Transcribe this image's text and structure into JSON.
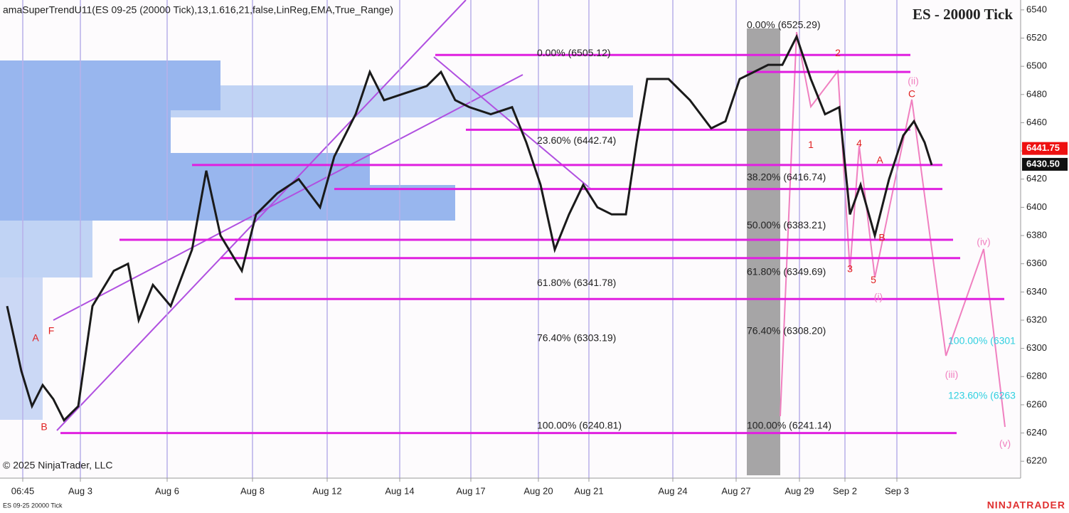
{
  "chart_data": {
    "type": "line",
    "indicator": "amaSuperTrendU11(ES 09-25 (20000 Tick),13,1.616,21,false,LinReg,EMA,True_Range)",
    "title": "ES - 20000 Tick",
    "copyright": "© 2025 NinjaTrader, LLC",
    "instrument": "ES 09-25 20000 Tick",
    "brand": "NINJATRADER",
    "color": "#1a1a1a",
    "x": [
      10,
      30,
      45,
      60,
      75,
      90,
      110,
      130,
      160,
      180,
      195,
      215,
      240,
      270,
      290,
      310,
      340,
      360,
      390,
      420,
      450,
      470,
      500,
      520,
      540,
      570,
      600,
      620,
      640,
      660,
      690,
      720,
      740,
      760,
      780,
      800,
      820,
      840,
      860,
      880,
      895,
      910,
      940,
      970,
      1000,
      1020,
      1040,
      1060,
      1080,
      1100,
      1120,
      1140,
      1160,
      1180,
      1195,
      1210,
      1230,
      1250,
      1270,
      1285,
      1300,
      1310
    ],
    "values": [
      6330,
      6284,
      6259,
      6274,
      6264,
      6249,
      6259,
      6330,
      6355,
      6360,
      6320,
      6345,
      6330,
      6370,
      6426,
      6380,
      6355,
      6395,
      6410,
      6420,
      6400,
      6436,
      6466,
      6496,
      6476,
      6481,
      6486,
      6496,
      6476,
      6471,
      6466,
      6471,
      6446,
      6416,
      6370,
      6395,
      6416,
      6400,
      6395,
      6395,
      6446,
      6491,
      6491,
      6476,
      6456,
      6461,
      6491,
      6496,
      6501,
      6501,
      6521,
      6491,
      6466,
      6471,
      6395,
      6416,
      6380,
      6420,
      6451,
      6461,
      6446,
      6430
    ],
    "xlim": [
      0,
      1435
    ],
    "ylim": [
      6208,
      6547
    ],
    "yticks": [
      6220,
      6240,
      6260,
      6280,
      6300,
      6320,
      6340,
      6360,
      6380,
      6400,
      6420,
      6440,
      6460,
      6480,
      6500,
      6520,
      6540
    ],
    "xticks": [
      {
        "value": 32,
        "label": "06:45"
      },
      {
        "value": 113,
        "label": "Aug 3"
      },
      {
        "value": 235,
        "label": "Aug 6"
      },
      {
        "value": 355,
        "label": "Aug 8"
      },
      {
        "value": 460,
        "label": "Aug 12"
      },
      {
        "value": 562,
        "label": "Aug 14"
      },
      {
        "value": 662,
        "label": "Aug 17"
      },
      {
        "value": 757,
        "label": "Aug 20"
      },
      {
        "value": 828,
        "label": "Aug 21"
      },
      {
        "value": 946,
        "label": "Aug 24"
      },
      {
        "value": 1035,
        "label": "Aug 27"
      },
      {
        "value": 1124,
        "label": "Aug 29"
      },
      {
        "value": 1188,
        "label": "Sep 2"
      },
      {
        "value": 1261,
        "label": "Sep 3"
      }
    ],
    "levels": [
      {
        "value": 6508,
        "from": 612,
        "to": 1280
      },
      {
        "value": 6496,
        "from": 1050,
        "to": 1280
      },
      {
        "value": 6455,
        "from": 655,
        "to": 1280
      },
      {
        "value": 6430,
        "from": 270,
        "to": 1325
      },
      {
        "value": 6413,
        "from": 470,
        "to": 1325
      },
      {
        "value": 6377,
        "from": 168,
        "to": 1340
      },
      {
        "value": 6364,
        "from": 310,
        "to": 1350
      },
      {
        "value": 6335,
        "from": 330,
        "to": 1412
      },
      {
        "value": 6240,
        "from": 85,
        "to": 1345
      }
    ],
    "level_color": "#e020e0",
    "fib_labels": [
      {
        "text": "0.00% (6505.12)",
        "x": 755,
        "y": 6509,
        "color": "#222222"
      },
      {
        "text": "23.60% (6442.74)",
        "x": 755,
        "y": 6447,
        "color": "#222222"
      },
      {
        "text": "61.80% (6341.78)",
        "x": 755,
        "y": 6346,
        "color": "#222222"
      },
      {
        "text": "76.40% (6303.19)",
        "x": 755,
        "y": 6307,
        "color": "#222222"
      },
      {
        "text": "100.00% (6240.81)",
        "x": 755,
        "y": 6245,
        "color": "#222222"
      },
      {
        "text": "0.00% (6525.29)",
        "x": 1050,
        "y": 6529,
        "color": "#222222"
      },
      {
        "text": "38.20% (6416.74)",
        "x": 1050,
        "y": 6421,
        "color": "#222222"
      },
      {
        "text": "50.00% (6383.21)",
        "x": 1050,
        "y": 6387,
        "color": "#222222"
      },
      {
        "text": "61.80% (6349.69)",
        "x": 1050,
        "y": 6354,
        "color": "#222222"
      },
      {
        "text": "76.40% (6308.20)",
        "x": 1050,
        "y": 6312,
        "color": "#222222"
      },
      {
        "text": "100.00% (6241.14)",
        "x": 1050,
        "y": 6245,
        "color": "#222222"
      },
      {
        "text": "100.00% (6301",
        "x": 1333,
        "y": 6305,
        "color": "#30d0e0"
      },
      {
        "text": "123.60% (6263",
        "x": 1333,
        "y": 6266,
        "color": "#30d0e0"
      }
    ],
    "annotations": [
      {
        "text": "A",
        "x": 50,
        "y": 6307,
        "color": "#e02020"
      },
      {
        "text": "F",
        "x": 72,
        "y": 6312,
        "color": "#e02020"
      },
      {
        "text": "B",
        "x": 62,
        "y": 6244,
        "color": "#e02020"
      },
      {
        "text": "1",
        "x": 1140,
        "y": 6444,
        "color": "#e02020"
      },
      {
        "text": "2",
        "x": 1178,
        "y": 6509,
        "color": "#e02020"
      },
      {
        "text": "3",
        "x": 1195,
        "y": 6356,
        "color": "#e02020"
      },
      {
        "text": "4",
        "x": 1208,
        "y": 6445,
        "color": "#e02020"
      },
      {
        "text": "5",
        "x": 1228,
        "y": 6348,
        "color": "#e02020"
      },
      {
        "text": "A",
        "x": 1237,
        "y": 6433,
        "color": "#e02020"
      },
      {
        "text": "B",
        "x": 1240,
        "y": 6378,
        "color": "#e02020"
      },
      {
        "text": "C",
        "x": 1282,
        "y": 6480,
        "color": "#e02020"
      },
      {
        "text": "(ii)",
        "x": 1284,
        "y": 6489,
        "color": "#f080c0"
      },
      {
        "text": "(i)",
        "x": 1235,
        "y": 6336,
        "color": "#f080c0"
      },
      {
        "text": "(iii)",
        "x": 1338,
        "y": 6281,
        "color": "#f080c0"
      },
      {
        "text": "(iv)",
        "x": 1383,
        "y": 6375,
        "color": "#f080c0"
      },
      {
        "text": "(v)",
        "x": 1413,
        "y": 6232,
        "color": "#f080c0"
      }
    ],
    "price_badges": [
      {
        "value": 6441.75,
        "label": "6441.75",
        "color": "#ee1111"
      },
      {
        "value": 6430.5,
        "label": "6430.50",
        "color": "#111111"
      }
    ]
  }
}
